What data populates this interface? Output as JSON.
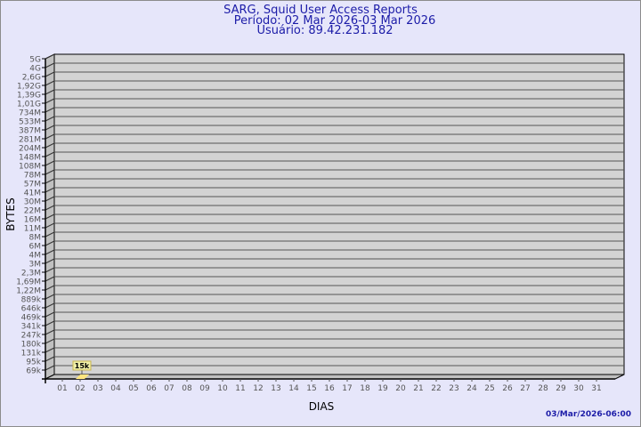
{
  "header": {
    "title": "SARG, Squid User Access Reports",
    "period": "Período: 02 Mar 2026-03 Mar 2026",
    "user": "Usuário: 89.42.231.182"
  },
  "footer": {
    "timestamp": "03/Mar/2026-06:00"
  },
  "colors": {
    "background": "#e6e6fa",
    "text": "#1c1ca8",
    "wall": "#d3d3d3",
    "side": "#c0c0c0",
    "bar": "#ffe680",
    "label_bg": "#f0f0a8"
  },
  "chart_data": {
    "type": "bar",
    "title": "SARG, Squid User Access Reports",
    "xlabel": "DIAS",
    "ylabel": "BYTES",
    "y_scale": "log",
    "categories": [
      "01",
      "02",
      "03",
      "04",
      "05",
      "06",
      "07",
      "08",
      "09",
      "10",
      "11",
      "12",
      "13",
      "14",
      "15",
      "16",
      "17",
      "18",
      "19",
      "20",
      "21",
      "22",
      "23",
      "24",
      "25",
      "26",
      "27",
      "28",
      "29",
      "30",
      "31"
    ],
    "y_tick_labels": [
      "5G",
      "4G",
      "2,6G",
      "1,92G",
      "1,39G",
      "1,01G",
      "734M",
      "533M",
      "387M",
      "281M",
      "204M",
      "148M",
      "108M",
      "78M",
      "57M",
      "41M",
      "30M",
      "22M",
      "16M",
      "11M",
      "8M",
      "6M",
      "4M",
      "3M",
      "2,3M",
      "1,69M",
      "1,22M",
      "889k",
      "646k",
      "469k",
      "341k",
      "247k",
      "180k",
      "131k",
      "95k",
      "69k"
    ],
    "series": [
      {
        "values": [
          null,
          15000,
          null,
          null,
          null,
          null,
          null,
          null,
          null,
          null,
          null,
          null,
          null,
          null,
          null,
          null,
          null,
          null,
          null,
          null,
          null,
          null,
          null,
          null,
          null,
          null,
          null,
          null,
          null,
          null,
          null
        ],
        "data_labels": {
          "02": "15k"
        }
      }
    ],
    "grid": true
  }
}
